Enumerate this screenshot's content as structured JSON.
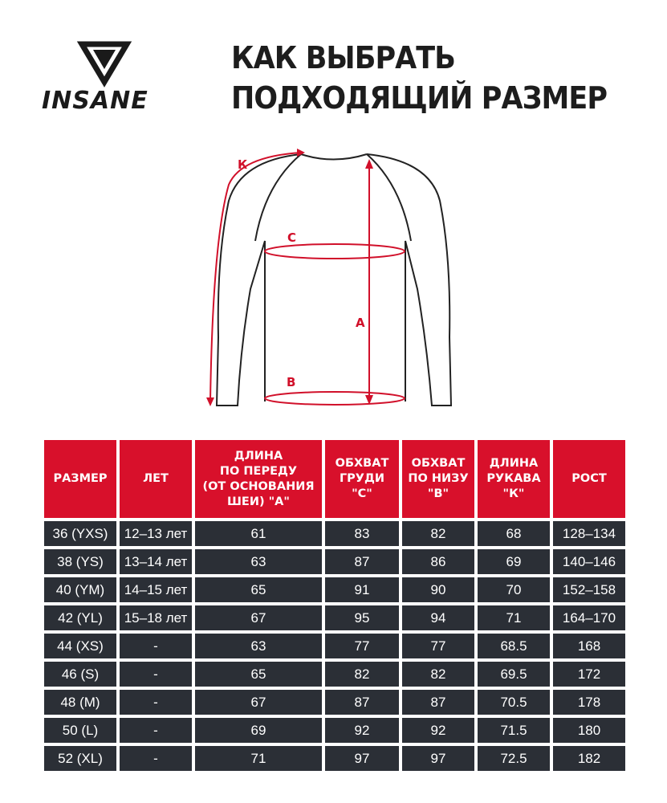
{
  "brand": {
    "name": "INSANE"
  },
  "title": {
    "line1": "КАК ВЫБРАТЬ",
    "line2": "ПОДХОДЯЩИЙ РАЗМЕР"
  },
  "diagram": {
    "labels": {
      "sleeve": "К",
      "chest": "С",
      "length": "А",
      "bottom": "В"
    },
    "accent_color": "#d1102a"
  },
  "table": {
    "headers": [
      "РАЗМЕР",
      "ЛЕТ",
      "ДЛИНА\nПО ПЕРЕДУ\n(ОТ ОСНОВАНИЯ\nШЕИ) \"А\"",
      "ОБХВАТ\nГРУДИ\n\"С\"",
      "ОБХВАТ\nПО НИЗУ\n\"В\"",
      "ДЛИНА\nРУКАВА\n\"К\"",
      "РОСТ"
    ],
    "rows": [
      [
        "36 (YXS)",
        "12–13 лет",
        "61",
        "83",
        "82",
        "68",
        "128–134"
      ],
      [
        "38 (YS)",
        "13–14 лет",
        "63",
        "87",
        "86",
        "69",
        "140–146"
      ],
      [
        "40 (YM)",
        "14–15 лет",
        "65",
        "91",
        "90",
        "70",
        "152–158"
      ],
      [
        "42 (YL)",
        "15–18 лет",
        "67",
        "95",
        "94",
        "71",
        "164–170"
      ],
      [
        "44 (XS)",
        "-",
        "63",
        "77",
        "77",
        "68.5",
        "168"
      ],
      [
        "46 (S)",
        "-",
        "65",
        "82",
        "82",
        "69.5",
        "172"
      ],
      [
        "48 (M)",
        "-",
        "67",
        "87",
        "87",
        "70.5",
        "178"
      ],
      [
        "50 (L)",
        "-",
        "69",
        "92",
        "92",
        "71.5",
        "180"
      ],
      [
        "52 (XL)",
        "-",
        "71",
        "97",
        "97",
        "72.5",
        "182"
      ]
    ],
    "header_color": "#d8102b",
    "row_color": "#2b2f36"
  }
}
